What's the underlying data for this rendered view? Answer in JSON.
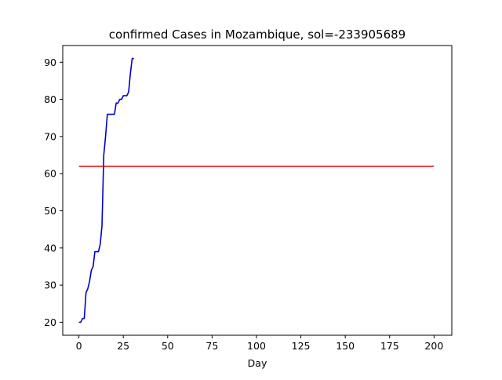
{
  "chart_data": {
    "type": "line",
    "title": "confirmed Cases in Mozambique, sol=-233905689",
    "xlabel": "Day",
    "ylabel": "",
    "xlim": [
      -9.1,
      210
    ],
    "ylim": [
      16.5,
      94.5
    ],
    "xticks": [
      0,
      25,
      50,
      75,
      100,
      125,
      150,
      175,
      200
    ],
    "xtick_labels": [
      "0",
      "25",
      "50",
      "75",
      "100",
      "125",
      "150",
      "175",
      "200"
    ],
    "yticks": [
      20,
      30,
      40,
      50,
      60,
      70,
      80,
      90
    ],
    "ytick_labels": [
      "20",
      "30",
      "40",
      "50",
      "60",
      "70",
      "80",
      "90"
    ],
    "grid": false,
    "legend": "none",
    "series": [
      {
        "name": "confirmed",
        "color": "#0000cc",
        "x": [
          0,
          1,
          2,
          3,
          4,
          5,
          6,
          7,
          8,
          9,
          10,
          11,
          12,
          13,
          14,
          15,
          16,
          17,
          18,
          19,
          20,
          21,
          22,
          23,
          24,
          25,
          26,
          27,
          28,
          29,
          30,
          31
        ],
        "values": [
          20,
          20,
          21,
          21,
          28,
          29,
          31,
          34,
          35,
          39,
          39,
          39,
          41,
          46,
          65,
          70,
          76,
          76,
          76,
          76,
          76,
          79,
          79,
          80,
          80,
          81,
          81,
          81,
          82,
          87,
          91,
          91
        ]
      },
      {
        "name": "sol",
        "color": "#dd0000",
        "x": [
          0,
          200
        ],
        "values": [
          62,
          62
        ]
      }
    ]
  }
}
